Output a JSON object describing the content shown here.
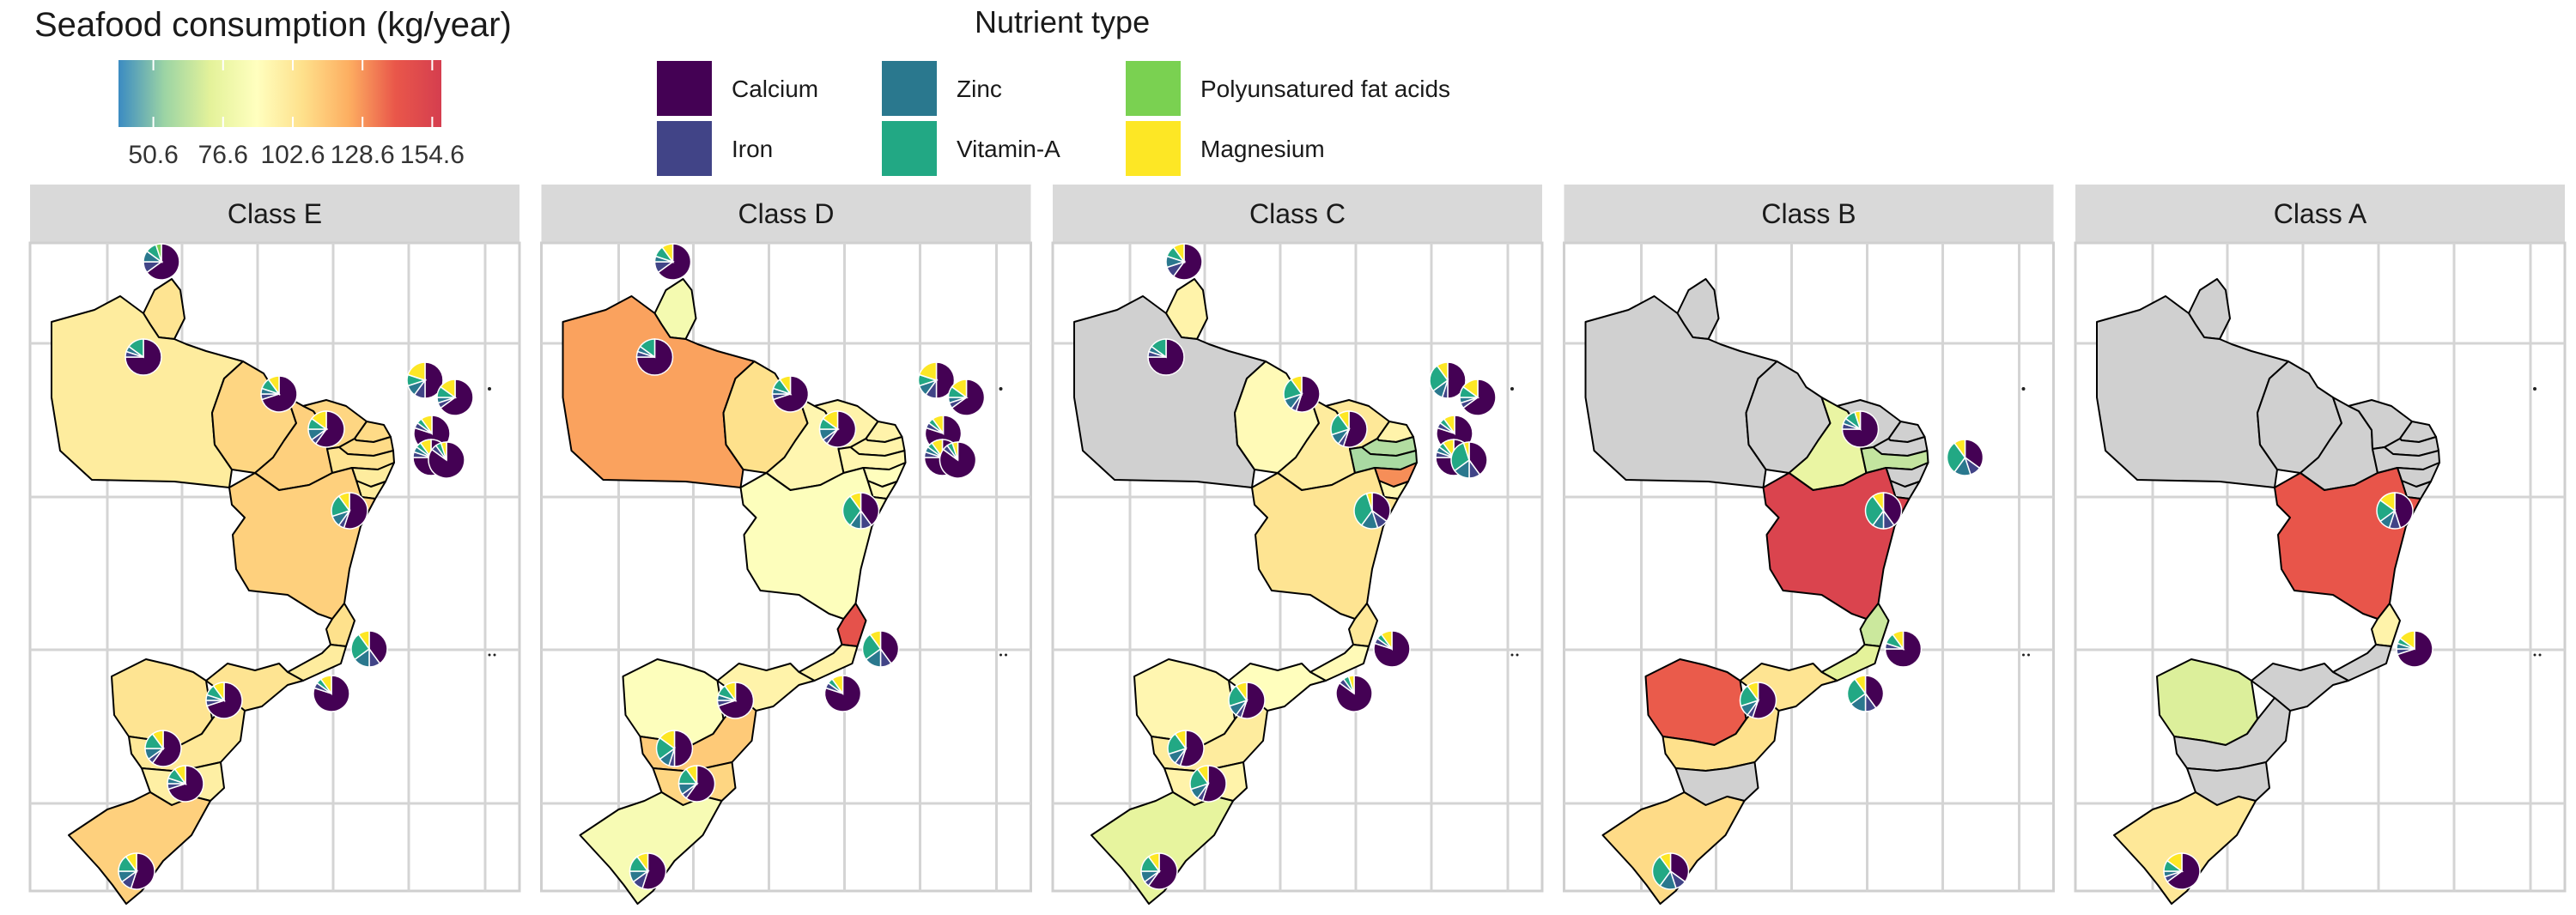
{
  "colorbar": {
    "title": "Seafood consumption (kg/year)",
    "min": 37.6,
    "max": 158.0,
    "ticks": [
      50.6,
      76.6,
      102.6,
      128.6,
      154.6
    ],
    "tick_labels": [
      "50.6",
      "76.6",
      "102.6",
      "128.6",
      "154.6"
    ],
    "palette": [
      "#3B8BC2",
      "#9CD4A4",
      "#E4F29A",
      "#FFFFBF",
      "#FEE08B",
      "#FDAE61",
      "#E9574A",
      "#D53E4F"
    ]
  },
  "legend": {
    "title": "Nutrient type",
    "items": [
      {
        "label": "Calcium",
        "color": "#440154"
      },
      {
        "label": "Iron",
        "color": "#414487"
      },
      {
        "label": "Zinc",
        "color": "#2A788E"
      },
      {
        "label": "Vitamin-A",
        "color": "#22A884"
      },
      {
        "label": "Polyunsatured fat acids",
        "color": "#7AD151"
      },
      {
        "label": "Magnesium",
        "color": "#FDE725"
      }
    ]
  },
  "no_data_color": "#D0D0D0",
  "panels": [
    {
      "class": "Class E",
      "regions": {
        "AP": 104,
        "PA": 100,
        "MA": 110,
        "PI": 112,
        "CE": 110,
        "RN": 108,
        "PB": 108,
        "PE": 104,
        "AL": 100,
        "SE": 100,
        "BA": 112,
        "ES": 106,
        "RJ": 100,
        "SP": 104,
        "MS": 104,
        "PR": 102,
        "SC": 98,
        "RS": 112
      },
      "pies": [
        {
          "region": "AP",
          "shares": [
            0.65,
            0.1,
            0.1,
            0.1,
            0.05,
            0.0
          ]
        },
        {
          "region": "PA",
          "shares": [
            0.75,
            0.05,
            0.05,
            0.15,
            0.0,
            0.0
          ]
        },
        {
          "region": "MA",
          "shares": [
            0.7,
            0.05,
            0.05,
            0.1,
            0.0,
            0.1
          ]
        },
        {
          "region": "PI",
          "shares": [
            0.6,
            0.05,
            0.1,
            0.1,
            0.0,
            0.15
          ]
        },
        {
          "region": "CE",
          "shares": [
            0.5,
            0.1,
            0.1,
            0.1,
            0.0,
            0.2
          ]
        },
        {
          "region": "RN",
          "shares": [
            0.65,
            0.05,
            0.05,
            0.1,
            0.0,
            0.15
          ]
        },
        {
          "region": "PB",
          "shares": [
            0.8,
            0.05,
            0.0,
            0.05,
            0.0,
            0.1
          ]
        },
        {
          "region": "PE",
          "shares": [
            0.75,
            0.05,
            0.05,
            0.05,
            0.0,
            0.1
          ]
        },
        {
          "region": "AL",
          "shares": [
            0.85,
            0.05,
            0.0,
            0.05,
            0.0,
            0.05
          ]
        },
        {
          "region": "BA",
          "shares": [
            0.55,
            0.05,
            0.1,
            0.2,
            0.0,
            0.1
          ]
        },
        {
          "region": "ES",
          "shares": [
            0.4,
            0.1,
            0.15,
            0.25,
            0.0,
            0.1
          ]
        },
        {
          "region": "RJ",
          "shares": [
            0.8,
            0.05,
            0.0,
            0.05,
            0.0,
            0.1
          ]
        },
        {
          "region": "SP",
          "shares": [
            0.7,
            0.05,
            0.05,
            0.1,
            0.0,
            0.1
          ]
        },
        {
          "region": "MS",
          "shares": [
            0.6,
            0.05,
            0.1,
            0.15,
            0.0,
            0.1
          ]
        },
        {
          "region": "PR",
          "shares": [
            0.7,
            0.05,
            0.05,
            0.1,
            0.0,
            0.1
          ]
        },
        {
          "region": "RS",
          "shares": [
            0.55,
            0.1,
            0.1,
            0.15,
            0.0,
            0.1
          ]
        }
      ]
    },
    {
      "class": "Class D",
      "regions": {
        "AP": 82,
        "PA": 126,
        "MA": 106,
        "PI": 94,
        "CE": 96,
        "RN": 96,
        "PB": 96,
        "PE": 94,
        "AL": 90,
        "SE": 92,
        "BA": 88,
        "ES": 144,
        "RJ": 96,
        "SP": 96,
        "MS": 88,
        "PR": 114,
        "SC": 110,
        "RS": 84
      },
      "pies": [
        {
          "region": "AP",
          "shares": [
            0.65,
            0.1,
            0.05,
            0.1,
            0.0,
            0.1
          ]
        },
        {
          "region": "PA",
          "shares": [
            0.75,
            0.05,
            0.05,
            0.15,
            0.0,
            0.0
          ]
        },
        {
          "region": "MA",
          "shares": [
            0.7,
            0.05,
            0.05,
            0.1,
            0.0,
            0.1
          ]
        },
        {
          "region": "PI",
          "shares": [
            0.6,
            0.05,
            0.1,
            0.1,
            0.0,
            0.15
          ]
        },
        {
          "region": "CE",
          "shares": [
            0.5,
            0.1,
            0.1,
            0.1,
            0.0,
            0.2
          ]
        },
        {
          "region": "RN",
          "shares": [
            0.65,
            0.05,
            0.05,
            0.1,
            0.0,
            0.15
          ]
        },
        {
          "region": "PB",
          "shares": [
            0.8,
            0.05,
            0.0,
            0.05,
            0.0,
            0.1
          ]
        },
        {
          "region": "PE",
          "shares": [
            0.75,
            0.05,
            0.05,
            0.05,
            0.0,
            0.1
          ]
        },
        {
          "region": "AL",
          "shares": [
            0.85,
            0.05,
            0.0,
            0.05,
            0.0,
            0.05
          ]
        },
        {
          "region": "BA",
          "shares": [
            0.4,
            0.1,
            0.1,
            0.3,
            0.0,
            0.1
          ]
        },
        {
          "region": "ES",
          "shares": [
            0.4,
            0.1,
            0.15,
            0.25,
            0.0,
            0.1
          ]
        },
        {
          "region": "RJ",
          "shares": [
            0.8,
            0.05,
            0.0,
            0.05,
            0.0,
            0.1
          ]
        },
        {
          "region": "SP",
          "shares": [
            0.7,
            0.05,
            0.05,
            0.1,
            0.0,
            0.1
          ]
        },
        {
          "region": "MS",
          "shares": [
            0.5,
            0.05,
            0.1,
            0.2,
            0.0,
            0.15
          ]
        },
        {
          "region": "PR",
          "shares": [
            0.6,
            0.05,
            0.1,
            0.15,
            0.0,
            0.1
          ]
        },
        {
          "region": "RS",
          "shares": [
            0.55,
            0.1,
            0.1,
            0.15,
            0.0,
            0.1
          ]
        }
      ]
    },
    {
      "class": "Class C",
      "regions": {
        "AP": 96,
        "PA": null,
        "MA": 92,
        "PI": 100,
        "CE": 102,
        "RN": 96,
        "PB": 60,
        "PE": 58,
        "AL": 130,
        "SE": 94,
        "BA": 104,
        "ES": 102,
        "RJ": 92,
        "SP": 90,
        "MS": 94,
        "PR": 100,
        "SC": 96,
        "RS": 74
      },
      "pies": [
        {
          "region": "AP",
          "shares": [
            0.6,
            0.1,
            0.1,
            0.1,
            0.0,
            0.1
          ]
        },
        {
          "region": "PA",
          "shares": [
            0.75,
            0.05,
            0.05,
            0.15,
            0.0,
            0.0
          ]
        },
        {
          "region": "MA",
          "shares": [
            0.55,
            0.05,
            0.1,
            0.2,
            0.0,
            0.1
          ]
        },
        {
          "region": "PI",
          "shares": [
            0.55,
            0.05,
            0.1,
            0.2,
            0.0,
            0.1
          ]
        },
        {
          "region": "CE",
          "shares": [
            0.5,
            0.05,
            0.1,
            0.25,
            0.0,
            0.1
          ]
        },
        {
          "region": "RN",
          "shares": [
            0.65,
            0.05,
            0.05,
            0.1,
            0.0,
            0.15
          ]
        },
        {
          "region": "PB",
          "shares": [
            0.8,
            0.05,
            0.0,
            0.05,
            0.0,
            0.1
          ]
        },
        {
          "region": "PE",
          "shares": [
            0.75,
            0.05,
            0.05,
            0.05,
            0.0,
            0.1
          ]
        },
        {
          "region": "AL",
          "shares": [
            0.4,
            0.1,
            0.15,
            0.3,
            0.0,
            0.05
          ]
        },
        {
          "region": "BA",
          "shares": [
            0.35,
            0.1,
            0.15,
            0.35,
            0.0,
            0.05
          ]
        },
        {
          "region": "ES",
          "shares": [
            0.8,
            0.05,
            0.0,
            0.05,
            0.0,
            0.1
          ]
        },
        {
          "region": "RJ",
          "shares": [
            0.85,
            0.05,
            0.0,
            0.05,
            0.0,
            0.05
          ]
        },
        {
          "region": "SP",
          "shares": [
            0.55,
            0.05,
            0.1,
            0.2,
            0.0,
            0.1
          ]
        },
        {
          "region": "MS",
          "shares": [
            0.55,
            0.05,
            0.1,
            0.2,
            0.0,
            0.1
          ]
        },
        {
          "region": "PR",
          "shares": [
            0.55,
            0.05,
            0.1,
            0.2,
            0.0,
            0.1
          ]
        },
        {
          "region": "RS",
          "shares": [
            0.6,
            0.05,
            0.1,
            0.15,
            0.0,
            0.1
          ]
        }
      ]
    },
    {
      "class": "Class B",
      "regions": {
        "AP": null,
        "PA": null,
        "MA": null,
        "PI": 76,
        "CE": null,
        "RN": null,
        "PB": null,
        "PE": 64,
        "AL": null,
        "SE": null,
        "BA": 154,
        "ES": 66,
        "RJ": 72,
        "SP": 104,
        "MS": 140,
        "PR": 106,
        "SC": null,
        "RS": 108
      },
      "pies": [
        {
          "region": "PI",
          "shares": [
            0.75,
            0.05,
            0.05,
            0.1,
            0.0,
            0.05
          ]
        },
        {
          "region": "PE",
          "shares": [
            0.35,
            0.1,
            0.15,
            0.3,
            0.0,
            0.1
          ]
        },
        {
          "region": "BA",
          "shares": [
            0.4,
            0.1,
            0.1,
            0.3,
            0.0,
            0.1
          ]
        },
        {
          "region": "ES",
          "shares": [
            0.75,
            0.05,
            0.0,
            0.1,
            0.0,
            0.1
          ]
        },
        {
          "region": "RJ",
          "shares": [
            0.4,
            0.1,
            0.15,
            0.25,
            0.0,
            0.1
          ]
        },
        {
          "region": "SP",
          "shares": [
            0.55,
            0.05,
            0.1,
            0.2,
            0.0,
            0.1
          ]
        },
        {
          "region": "RS",
          "shares": [
            0.35,
            0.1,
            0.15,
            0.3,
            0.0,
            0.1
          ]
        }
      ]
    },
    {
      "class": "Class A",
      "regions": {
        "AP": null,
        "PA": null,
        "MA": null,
        "PI": null,
        "CE": null,
        "RN": null,
        "PB": null,
        "PE": null,
        "AL": null,
        "SE": null,
        "BA": 142,
        "ES": 96,
        "RJ": null,
        "SP": null,
        "MS": 70,
        "PR": null,
        "SC": null,
        "RS": 102
      },
      "pies": [
        {
          "region": "BA",
          "shares": [
            0.45,
            0.1,
            0.1,
            0.2,
            0.0,
            0.15
          ]
        },
        {
          "region": "ES",
          "shares": [
            0.7,
            0.05,
            0.05,
            0.05,
            0.0,
            0.15
          ]
        },
        {
          "region": "RS",
          "shares": [
            0.65,
            0.05,
            0.05,
            0.1,
            0.0,
            0.15
          ]
        }
      ]
    }
  ]
}
